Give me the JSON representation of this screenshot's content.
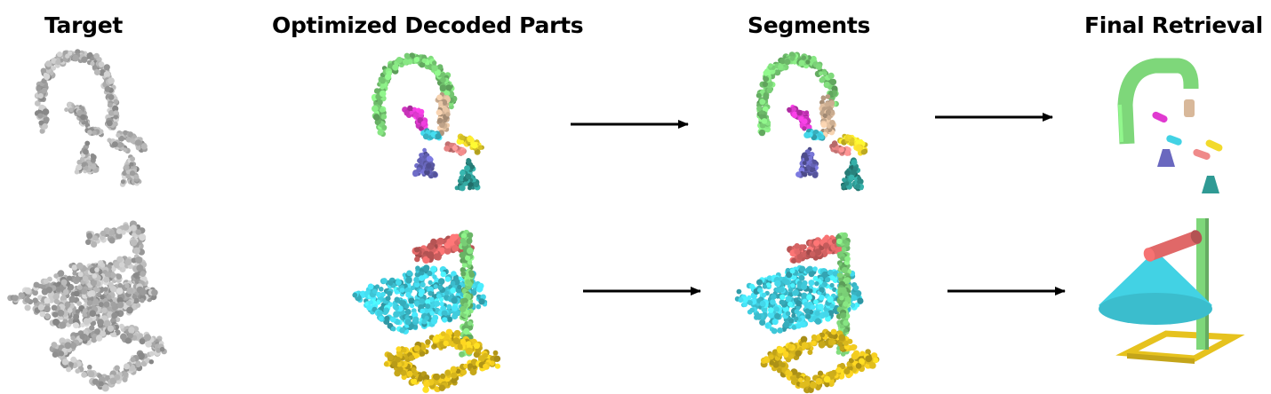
{
  "headers": {
    "target": "Target",
    "decoded": "Optimized Decoded Parts",
    "segments": "Segments",
    "retrieval": "Final Retrieval"
  },
  "colors": {
    "target": "#b9b9b9",
    "green": "#7ed77a",
    "tan": "#d8b89a",
    "magenta": "#e03ad0",
    "cyan": "#42d2e4",
    "yellow": "#f2da2c",
    "salmon": "#ef8a8a",
    "violet": "#6a68bf",
    "teal": "#2f9a94",
    "red": "#e06868",
    "gold": "#e6c21e",
    "arrow": "#000000"
  },
  "rows": [
    {
      "object": "faucet"
    },
    {
      "object": "lamp"
    }
  ]
}
